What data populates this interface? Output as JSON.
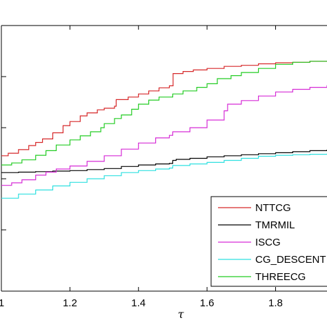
{
  "chart_data": {
    "type": "line",
    "title": "",
    "xlabel": "τ",
    "ylabel": "",
    "xlim": [
      1.0,
      1.95
    ],
    "ylim": [
      0.48,
      1.0
    ],
    "xticks": [
      "1",
      "1.2",
      "1.4",
      "1.6",
      "1.8"
    ],
    "xtick_values": [
      1.0,
      1.2,
      1.4,
      1.6,
      1.8
    ],
    "grid": false,
    "legend_position": "bottom-right",
    "series": [
      {
        "name": "NTTCG",
        "color": "#d62728",
        "step": true,
        "points": [
          [
            1.0,
            0.745
          ],
          [
            1.02,
            0.75
          ],
          [
            1.05,
            0.757
          ],
          [
            1.08,
            0.765
          ],
          [
            1.1,
            0.771
          ],
          [
            1.12,
            0.778
          ],
          [
            1.15,
            0.79
          ],
          [
            1.18,
            0.804
          ],
          [
            1.2,
            0.812
          ],
          [
            1.23,
            0.823
          ],
          [
            1.25,
            0.829
          ],
          [
            1.28,
            0.835
          ],
          [
            1.3,
            0.838
          ],
          [
            1.33,
            0.842
          ],
          [
            1.335,
            0.855
          ],
          [
            1.37,
            0.86
          ],
          [
            1.4,
            0.866
          ],
          [
            1.43,
            0.872
          ],
          [
            1.46,
            0.878
          ],
          [
            1.49,
            0.882
          ],
          [
            1.5,
            0.882
          ],
          [
            1.501,
            0.906
          ],
          [
            1.53,
            0.91
          ],
          [
            1.56,
            0.913
          ],
          [
            1.6,
            0.916
          ],
          [
            1.65,
            0.92
          ],
          [
            1.7,
            0.922
          ],
          [
            1.75,
            0.925
          ],
          [
            1.8,
            0.927
          ],
          [
            1.85,
            0.928
          ],
          [
            1.9,
            0.93
          ],
          [
            1.95,
            0.931
          ]
        ]
      },
      {
        "name": "TMRMIL",
        "color": "#000000",
        "step": true,
        "points": [
          [
            1.0,
            0.712
          ],
          [
            1.05,
            0.713
          ],
          [
            1.1,
            0.714
          ],
          [
            1.15,
            0.715
          ],
          [
            1.2,
            0.716
          ],
          [
            1.25,
            0.718
          ],
          [
            1.3,
            0.72
          ],
          [
            1.35,
            0.724
          ],
          [
            1.4,
            0.727
          ],
          [
            1.45,
            0.729
          ],
          [
            1.49,
            0.73
          ],
          [
            1.5,
            0.736
          ],
          [
            1.51,
            0.738
          ],
          [
            1.55,
            0.74
          ],
          [
            1.6,
            0.743
          ],
          [
            1.65,
            0.745
          ],
          [
            1.7,
            0.747
          ],
          [
            1.75,
            0.749
          ],
          [
            1.8,
            0.751
          ],
          [
            1.85,
            0.753
          ],
          [
            1.9,
            0.755
          ],
          [
            1.95,
            0.757
          ]
        ]
      },
      {
        "name": "ISCG",
        "color": "#d62ad6",
        "step": true,
        "points": [
          [
            1.0,
            0.687
          ],
          [
            1.03,
            0.692
          ],
          [
            1.06,
            0.698
          ],
          [
            1.1,
            0.707
          ],
          [
            1.13,
            0.713
          ],
          [
            1.16,
            0.719
          ],
          [
            1.2,
            0.725
          ],
          [
            1.25,
            0.734
          ],
          [
            1.3,
            0.745
          ],
          [
            1.35,
            0.758
          ],
          [
            1.4,
            0.77
          ],
          [
            1.45,
            0.78
          ],
          [
            1.49,
            0.785
          ],
          [
            1.5,
            0.792
          ],
          [
            1.55,
            0.8
          ],
          [
            1.6,
            0.815
          ],
          [
            1.65,
            0.833
          ],
          [
            1.66,
            0.846
          ],
          [
            1.7,
            0.853
          ],
          [
            1.75,
            0.862
          ],
          [
            1.8,
            0.87
          ],
          [
            1.85,
            0.875
          ],
          [
            1.9,
            0.879
          ],
          [
            1.95,
            0.883
          ]
        ]
      },
      {
        "name": "CG_DESCENT",
        "color": "#2ee0e0",
        "step": true,
        "points": [
          [
            1.0,
            0.662
          ],
          [
            1.05,
            0.67
          ],
          [
            1.1,
            0.678
          ],
          [
            1.15,
            0.686
          ],
          [
            1.2,
            0.693
          ],
          [
            1.25,
            0.7
          ],
          [
            1.3,
            0.706
          ],
          [
            1.35,
            0.712
          ],
          [
            1.4,
            0.716
          ],
          [
            1.45,
            0.719
          ],
          [
            1.49,
            0.721
          ],
          [
            1.5,
            0.726
          ],
          [
            1.55,
            0.729
          ],
          [
            1.6,
            0.732
          ],
          [
            1.65,
            0.736
          ],
          [
            1.7,
            0.74
          ],
          [
            1.75,
            0.744
          ],
          [
            1.8,
            0.746
          ],
          [
            1.85,
            0.747
          ],
          [
            1.9,
            0.748
          ],
          [
            1.95,
            0.749
          ]
        ]
      },
      {
        "name": "THREECG",
        "color": "#22cc22",
        "step": true,
        "points": [
          [
            1.0,
            0.727
          ],
          [
            1.03,
            0.731
          ],
          [
            1.06,
            0.737
          ],
          [
            1.1,
            0.746
          ],
          [
            1.13,
            0.755
          ],
          [
            1.16,
            0.766
          ],
          [
            1.2,
            0.776
          ],
          [
            1.23,
            0.784
          ],
          [
            1.26,
            0.792
          ],
          [
            1.29,
            0.8
          ],
          [
            1.3,
            0.808
          ],
          [
            1.33,
            0.818
          ],
          [
            1.35,
            0.825
          ],
          [
            1.38,
            0.836
          ],
          [
            1.4,
            0.846
          ],
          [
            1.43,
            0.854
          ],
          [
            1.46,
            0.86
          ],
          [
            1.5,
            0.866
          ],
          [
            1.53,
            0.872
          ],
          [
            1.57,
            0.879
          ],
          [
            1.6,
            0.886
          ],
          [
            1.63,
            0.896
          ],
          [
            1.67,
            0.902
          ],
          [
            1.7,
            0.908
          ],
          [
            1.75,
            0.916
          ],
          [
            1.8,
            0.924
          ],
          [
            1.85,
            0.928
          ],
          [
            1.9,
            0.93
          ],
          [
            1.95,
            0.931
          ]
        ]
      }
    ]
  }
}
